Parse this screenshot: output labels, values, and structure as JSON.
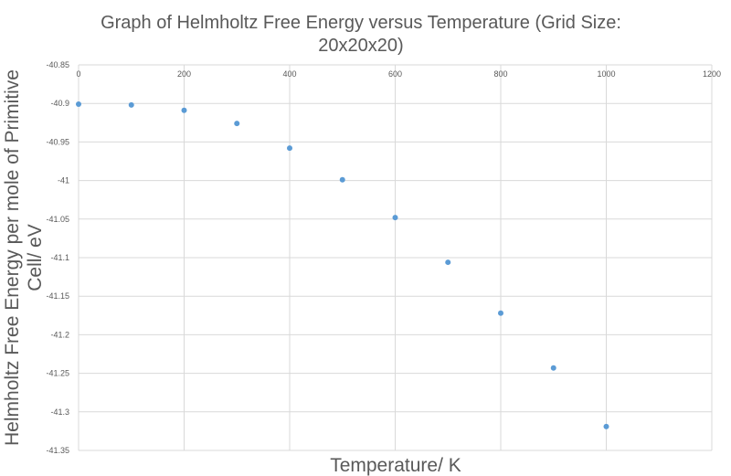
{
  "chart_data": {
    "type": "scatter",
    "title_lines": [
      "Graph of Helmholtz Free Energy versus Temperature (Grid Size:",
      "20x20x20)"
    ],
    "xlabel": "Temperature/ K",
    "ylabel_lines": [
      "Helmholtz Free Energy per mole of Primitive",
      "Cell/ eV"
    ],
    "xlim": [
      0,
      1200
    ],
    "ylim": [
      -41.35,
      -40.85
    ],
    "x_ticks": [
      "0",
      "200",
      "400",
      "600",
      "800",
      "1000",
      "1200"
    ],
    "x_tick_values": [
      0,
      200,
      400,
      600,
      800,
      1000,
      1200
    ],
    "y_ticks": [
      "-40.85",
      "-40.9",
      "-40.95",
      "-41",
      "-41.05",
      "-41.1",
      "-41.15",
      "-41.2",
      "-41.25",
      "-41.3",
      "-41.35"
    ],
    "y_tick_values": [
      -40.85,
      -40.9,
      -40.95,
      -41.0,
      -41.05,
      -41.1,
      -41.15,
      -41.2,
      -41.25,
      -41.3,
      -41.35
    ],
    "grid": true,
    "series": [
      {
        "color": "#5b9bd5",
        "points": [
          {
            "x": 0,
            "y": -40.901
          },
          {
            "x": 100,
            "y": -40.902
          },
          {
            "x": 200,
            "y": -40.909
          },
          {
            "x": 300,
            "y": -40.926
          },
          {
            "x": 400,
            "y": -40.958
          },
          {
            "x": 500,
            "y": -40.999
          },
          {
            "x": 600,
            "y": -41.048
          },
          {
            "x": 700,
            "y": -41.106
          },
          {
            "x": 800,
            "y": -41.172
          },
          {
            "x": 900,
            "y": -41.243
          },
          {
            "x": 1000,
            "y": -41.319
          }
        ]
      }
    ]
  }
}
